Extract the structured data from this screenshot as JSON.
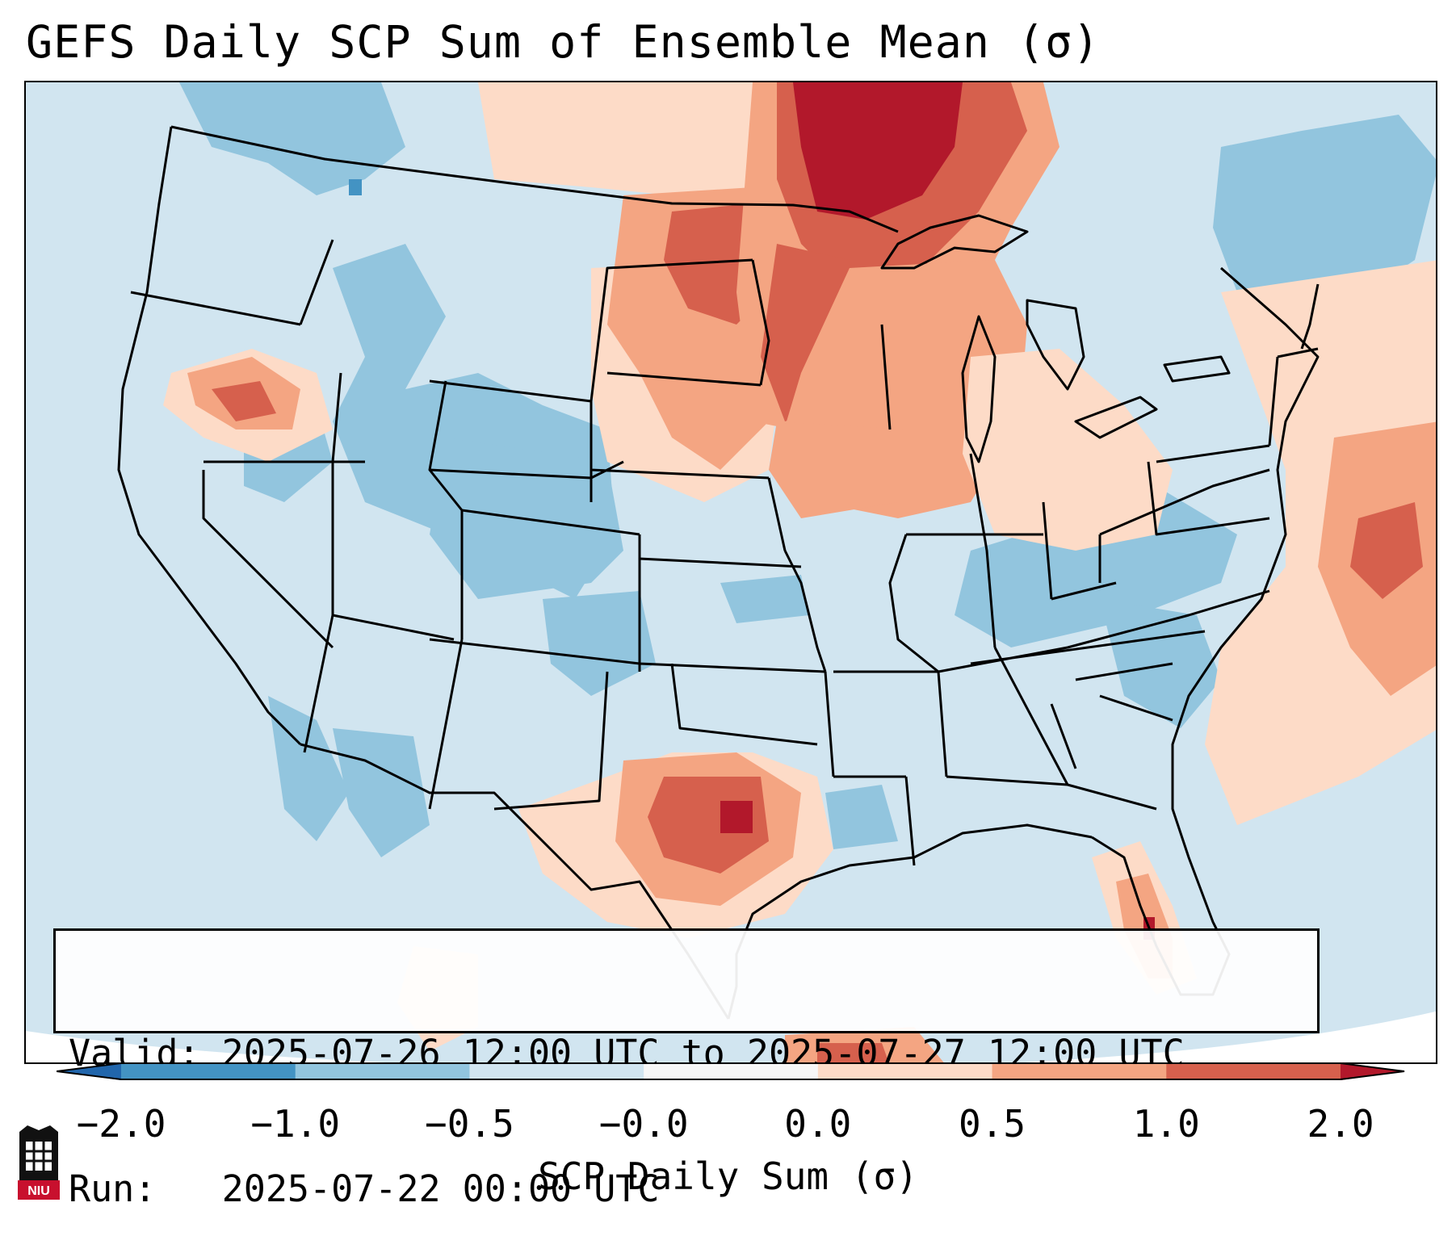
{
  "header": {
    "title": "GEFS Daily SCP Sum of Ensemble Mean (σ)"
  },
  "info": {
    "valid_line": "Valid: 2025-07-26 12:00 UTC to 2025-07-27 12:00 UTC",
    "run_line": "Run:   2025-07-22 00:00 UTC"
  },
  "colorbar": {
    "label": "SCP Daily Sum (σ)",
    "ticks": [
      "−2.0",
      "−1.0",
      "−0.5",
      "−0.0",
      "0.0",
      "0.5",
      "1.0",
      "2.0"
    ],
    "colors": {
      "extend_min": "#2166ac",
      "bins": [
        "#4393c3",
        "#92c5de",
        "#d1e5f0",
        "#f7f7f7",
        "#fddbc7",
        "#f4a582",
        "#d6604d"
      ],
      "extend_max": "#b2182b"
    }
  },
  "logo": {
    "text": "NIU"
  },
  "map": {
    "background_color": "#d1e5f0",
    "outside_color": "#ffffff",
    "anomaly_regions": [
      {
        "name": "upper-midwest-max",
        "level": 2.0
      },
      {
        "name": "dakotas-minnesota",
        "level": 1.0
      },
      {
        "name": "wisconsin-iowa",
        "level": 0.5
      },
      {
        "name": "texas-panhandle-max",
        "level": 1.0
      },
      {
        "name": "central-texas",
        "level": 0.5
      },
      {
        "name": "oregon-max",
        "level": 1.0
      },
      {
        "name": "atlantic-offshore",
        "level": 0.5
      },
      {
        "name": "florida-east",
        "level": 0.5
      },
      {
        "name": "rockies-negative",
        "level": -0.5
      },
      {
        "name": "appalachian-negative",
        "level": -0.5
      }
    ]
  }
}
